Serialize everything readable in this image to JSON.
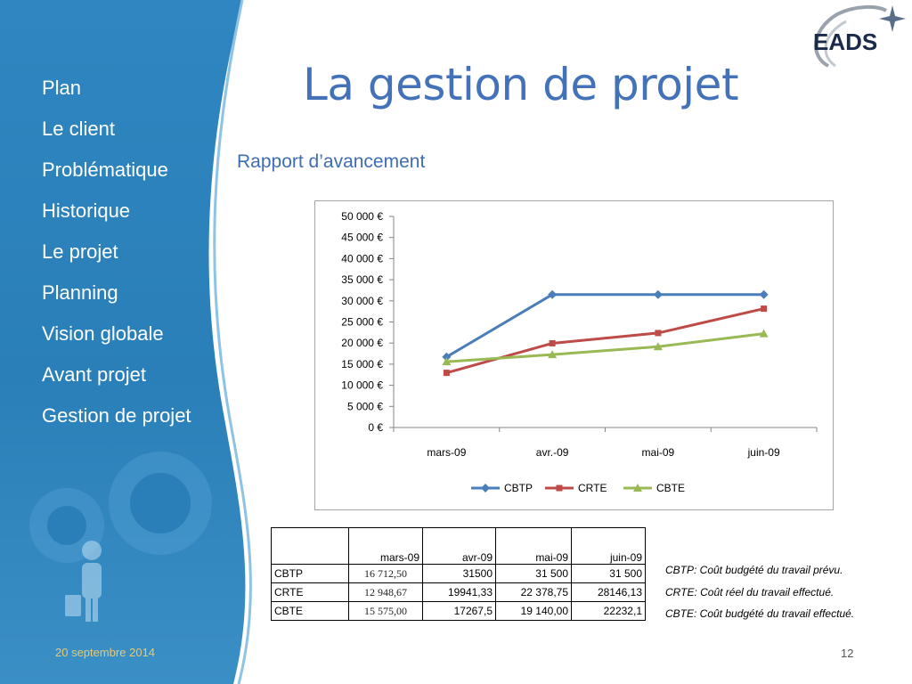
{
  "header": {
    "title": "La gestion de projet",
    "subtitle": "Rapport d’avancement",
    "logo_text": "EADS"
  },
  "sidebar": {
    "items": [
      {
        "label": "Plan"
      },
      {
        "label": "Le client"
      },
      {
        "label": "Problématique"
      },
      {
        "label": "Historique"
      },
      {
        "label": "Le projet"
      },
      {
        "label": "Planning"
      },
      {
        "label": "Vision globale"
      },
      {
        "label": "Avant projet"
      },
      {
        "label": "Gestion de projet"
      }
    ]
  },
  "footer": {
    "date": "20 septembre 2014",
    "page_number": "12"
  },
  "colors": {
    "sidebar_blue": "#2a7fb8",
    "title_blue": "#4472b8",
    "cbtp": "#4a7ebb",
    "crte": "#be4b48",
    "cbte": "#98b954"
  },
  "chart_data": {
    "type": "line",
    "categories": [
      "mars-09",
      "avr.-09",
      "mai-09",
      "juin-09"
    ],
    "series": [
      {
        "name": "CBTP",
        "values": [
          16712.5,
          31500,
          31500,
          31500
        ],
        "color": "#4a7ebb",
        "marker": "diamond"
      },
      {
        "name": "CRTE",
        "values": [
          12948.67,
          19941.33,
          22378.75,
          28146.13
        ],
        "color": "#be4b48",
        "marker": "square"
      },
      {
        "name": "CBTE",
        "values": [
          15575.0,
          17267.5,
          19140.0,
          22232.1
        ],
        "color": "#98b954",
        "marker": "triangle"
      }
    ],
    "y_ticks": [
      "0 €",
      "5 000 €",
      "10 000 €",
      "15 000 €",
      "20 000 €",
      "25 000 €",
      "30 000 €",
      "35 000 €",
      "40 000 €",
      "45 000 €",
      "50 000 €"
    ],
    "ylim": [
      0,
      50000
    ],
    "grid": false,
    "legend_position": "bottom"
  },
  "table": {
    "headers": [
      "",
      "mars-09",
      "avr-09",
      "mai-09",
      "juin-09"
    ],
    "rows": [
      {
        "label": "CBTP",
        "cells": [
          "16 712,50",
          "31500",
          "31 500",
          "31 500"
        ]
      },
      {
        "label": "CRTE",
        "cells": [
          "12 948,67",
          "19941,33",
          "22 378,75",
          "28146,13"
        ]
      },
      {
        "label": "CBTE",
        "cells": [
          "15 575,00",
          "17267,5",
          "19 140,00",
          "22232,1"
        ]
      }
    ]
  },
  "notes": [
    "CBTP: Coût budgété du travail prévu.",
    "CRTE: Coût réel du travail effectué.",
    "CBTE: Coût budgété du travail effectué."
  ]
}
